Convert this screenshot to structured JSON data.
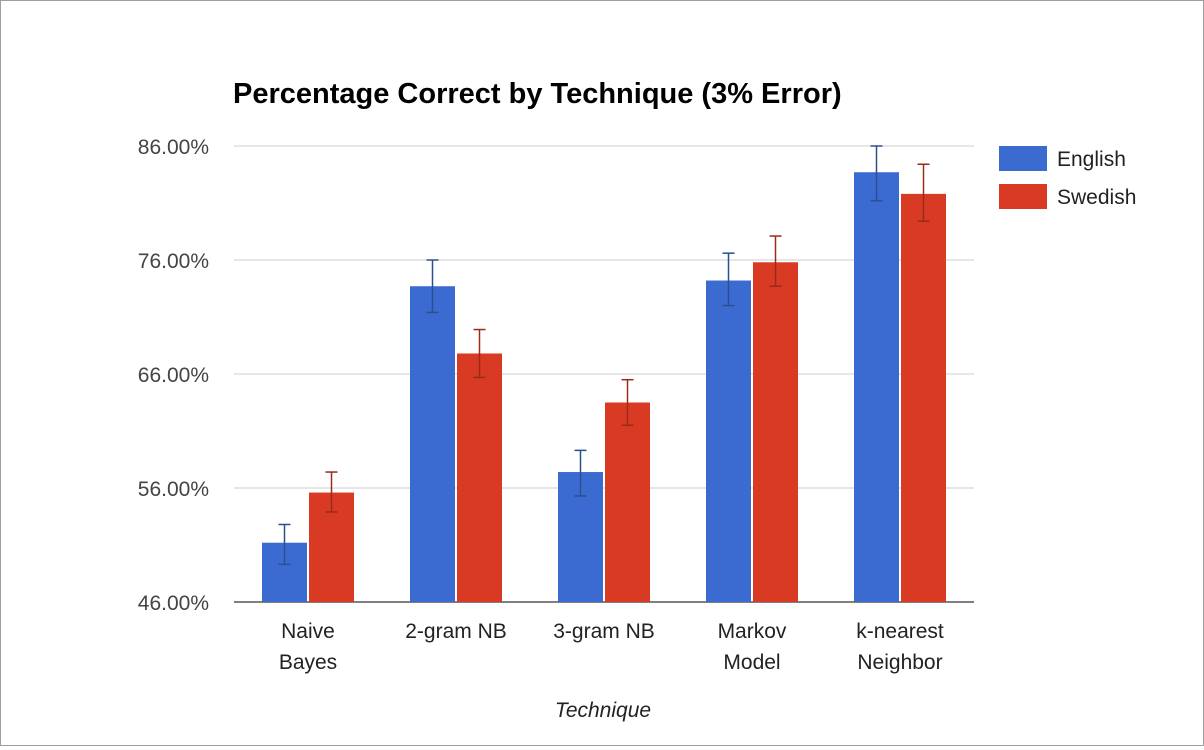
{
  "chart_data": {
    "type": "bar",
    "title": "Percentage Correct by Technique (3% Error)",
    "xlabel": "Technique",
    "ylabel": "",
    "ylim": [
      46,
      86
    ],
    "yticks": [
      46,
      56,
      66,
      76,
      86
    ],
    "ytick_labels": [
      "46.00%",
      "56.00%",
      "66.00%",
      "76.00%",
      "86.00%"
    ],
    "categories": [
      [
        "Naive",
        "Bayes"
      ],
      [
        "2-gram NB"
      ],
      [
        "3-gram NB"
      ],
      [
        "Markov",
        "Model"
      ],
      [
        "k-nearest",
        "Neighbor"
      ]
    ],
    "series": [
      {
        "name": "English",
        "color": "#3b6bd0",
        "error_color": "#2b4f8f",
        "values": [
          51.2,
          73.7,
          57.4,
          74.2,
          83.7
        ],
        "error_low": [
          49.3,
          71.4,
          55.3,
          72.0,
          81.2
        ],
        "error_high": [
          52.8,
          76.0,
          59.3,
          76.6,
          86.0
        ]
      },
      {
        "name": "Swedish",
        "color": "#d93a24",
        "error_color": "#9a2a1a",
        "values": [
          55.6,
          67.8,
          63.5,
          75.8,
          81.8
        ],
        "error_low": [
          53.9,
          65.7,
          61.5,
          73.7,
          79.4
        ],
        "error_high": [
          57.4,
          69.9,
          65.5,
          78.1,
          84.4
        ]
      }
    ],
    "grid": true,
    "legend_position": "right"
  }
}
